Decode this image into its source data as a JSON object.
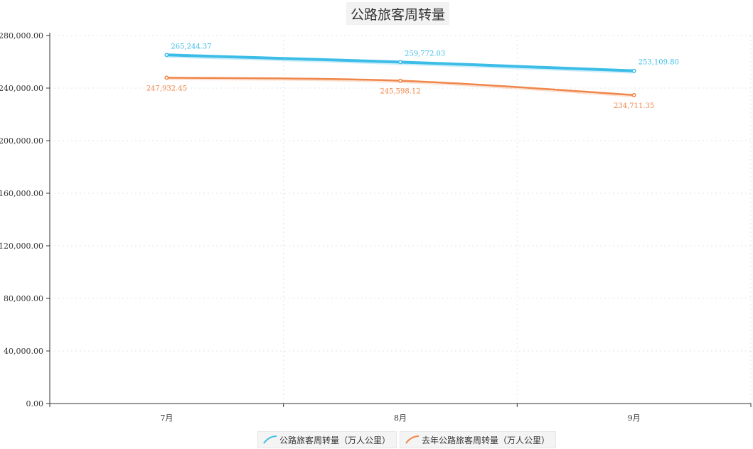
{
  "chart_data": {
    "type": "line",
    "title": "公路旅客周转量",
    "categories": [
      "7月",
      "8月",
      "9月"
    ],
    "ylim": [
      0,
      280000
    ],
    "yticks": [
      "0.00",
      "40,000.00",
      "80,000.00",
      "120,000.00",
      "160,000.00",
      "200,000.00",
      "240,000.00",
      "280,000.00"
    ],
    "ytick_values": [
      0,
      40000,
      80000,
      120000,
      160000,
      200000,
      240000,
      280000
    ],
    "grid": true,
    "legend_position": "bottom-center",
    "series": [
      {
        "name": "公路旅客周转量（万人公里）",
        "values": [
          265244.37,
          259772.03,
          253109.8
        ],
        "labels": [
          "265,244.37",
          "259,772.03",
          "253,109.80"
        ],
        "color": "#3cbde8",
        "label_position": "above"
      },
      {
        "name": "去年公路旅客周转量（万人公里）",
        "values": [
          247932.45,
          245598.12,
          234711.35
        ],
        "labels": [
          "247,932.45",
          "245,598.12",
          "234,711.35"
        ],
        "color": "#f0864a",
        "label_position": "below"
      }
    ]
  }
}
